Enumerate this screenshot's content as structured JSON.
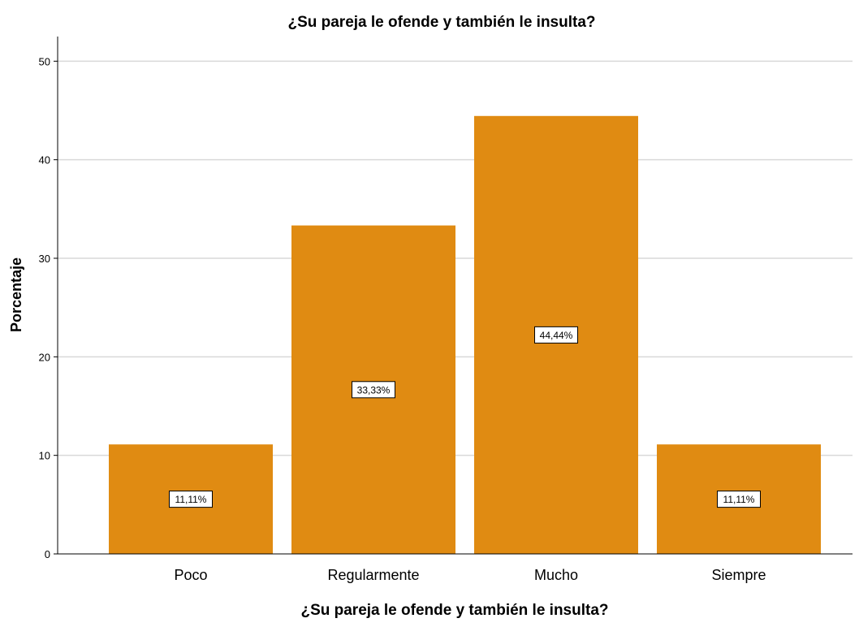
{
  "chart_data": {
    "type": "bar",
    "title": "¿Su pareja le ofende y también le insulta?",
    "xlabel": "¿Su pareja le ofende y también le insulta?",
    "ylabel": "Porcentaje",
    "categories": [
      "Poco",
      "Regularmente",
      "Mucho",
      "Siempre"
    ],
    "values": [
      11.11,
      33.33,
      44.44,
      11.11
    ],
    "data_labels": [
      "11,11%",
      "33,33%",
      "44,44%",
      "11,11%"
    ],
    "yticks": [
      "0",
      "10",
      "20",
      "30",
      "40",
      "50"
    ],
    "ylim": [
      0,
      52.5
    ],
    "grid": true,
    "bar_color": "#e08b12",
    "grid_color": "#d9d9d9"
  }
}
